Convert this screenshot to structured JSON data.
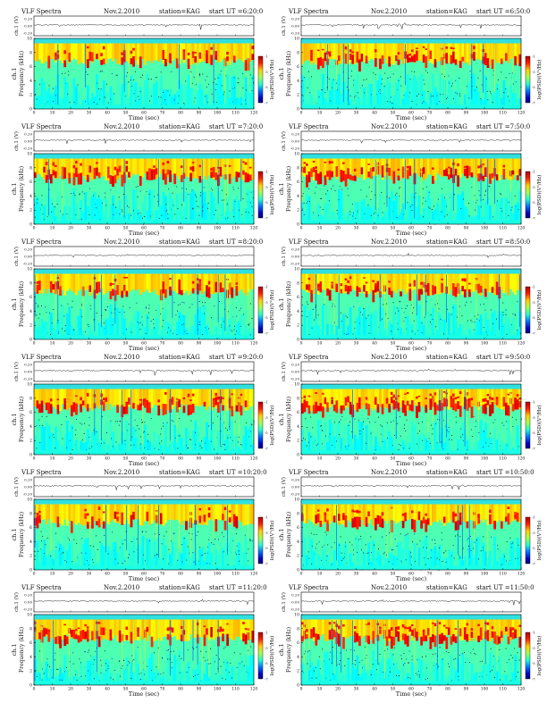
{
  "page": {
    "background": "#ffffff"
  },
  "chart_data": [
    {
      "type": "heatmap",
      "title": "VLF Spectra",
      "date": "Nov.2.2010",
      "station": "station=KAG",
      "start_ut": "start UT =6:20:0",
      "time_series": {
        "ylabel": "ch.1 (V)",
        "yticks": [
          "0.20",
          "0.00",
          "-0.20"
        ]
      },
      "spectrogram": {
        "ylabel_channel": "ch.1",
        "ylabel": "Frequency (kHz)",
        "xlabel": "Time (sec)",
        "xlim": [
          0,
          120
        ],
        "ylim": [
          0,
          10
        ],
        "xticks": [
          0,
          10,
          20,
          30,
          40,
          50,
          60,
          70,
          80,
          90,
          100,
          110,
          120
        ],
        "yticks": [
          0,
          2,
          4,
          6,
          8,
          10
        ]
      },
      "colorbar": {
        "label": "log(PSD)(V²/Hz)",
        "ticks": [
          "-1",
          "-3",
          "-5",
          "-7"
        ]
      }
    },
    {
      "type": "heatmap",
      "title": "VLF Spectra",
      "date": "Nov.2.2010",
      "station": "station=KAG",
      "start_ut": "start UT =6:50:0",
      "time_series": {
        "ylabel": "ch.1 (V)",
        "yticks": [
          "0.20",
          "0.00",
          "-0.20"
        ]
      },
      "spectrogram": {
        "ylabel_channel": "ch.1",
        "ylabel": "Frequency (kHz)",
        "xlabel": "Time (sec)",
        "xlim": [
          0,
          120
        ],
        "ylim": [
          0,
          10
        ],
        "xticks": [
          0,
          10,
          20,
          30,
          40,
          50,
          60,
          70,
          80,
          90,
          100,
          110,
          120
        ],
        "yticks": [
          0,
          2,
          4,
          6,
          8,
          10
        ]
      },
      "colorbar": {
        "label": "log(PSD)(V²/Hz)",
        "ticks": [
          "-1",
          "-3",
          "-5",
          "-7"
        ]
      }
    },
    {
      "type": "heatmap",
      "title": "VLF Spectra",
      "date": "Nov.2.2010",
      "station": "station=KAG",
      "start_ut": "start UT =7:20:0",
      "time_series": {
        "ylabel": "ch.1 (V)",
        "yticks": [
          "0.20",
          "0.00",
          "-0.20"
        ]
      },
      "spectrogram": {
        "ylabel_channel": "ch.1",
        "ylabel": "Frequency (kHz)",
        "xlabel": "Time (sec)",
        "xlim": [
          0,
          120
        ],
        "ylim": [
          0,
          10
        ],
        "xticks": [
          0,
          10,
          20,
          30,
          40,
          50,
          60,
          70,
          80,
          90,
          100,
          110,
          120
        ],
        "yticks": [
          0,
          2,
          4,
          6,
          8,
          10
        ]
      },
      "colorbar": {
        "label": "log(PSD)(V²/Hz)",
        "ticks": [
          "-1",
          "-3",
          "-5",
          "-7"
        ]
      }
    },
    {
      "type": "heatmap",
      "title": "VLF Spectra",
      "date": "Nov.2.2010",
      "station": "station=KAG",
      "start_ut": "start UT =7:50:0",
      "time_series": {
        "ylabel": "ch.1 (V)",
        "yticks": [
          "0.20",
          "0.00",
          "-0.20"
        ]
      },
      "spectrogram": {
        "ylabel_channel": "ch.1",
        "ylabel": "Frequency (kHz)",
        "xlabel": "Time (sec)",
        "xlim": [
          0,
          120
        ],
        "ylim": [
          0,
          10
        ],
        "xticks": [
          0,
          10,
          20,
          30,
          40,
          50,
          60,
          70,
          80,
          90,
          100,
          110,
          120
        ],
        "yticks": [
          0,
          2,
          4,
          6,
          8,
          10
        ]
      },
      "colorbar": {
        "label": "log(PSD)(V²/Hz)",
        "ticks": [
          "-1",
          "-3",
          "-5",
          "-7"
        ]
      }
    },
    {
      "type": "heatmap",
      "title": "VLF Spectra",
      "date": "Nov.2.2010",
      "station": "station=KAG",
      "start_ut": "start UT =8:20:0",
      "time_series": {
        "ylabel": "ch.1 (V)",
        "yticks": [
          "0.20",
          "0.00",
          "-0.20"
        ]
      },
      "spectrogram": {
        "ylabel_channel": "ch.1",
        "ylabel": "Frequency (kHz)",
        "xlabel": "Time (sec)",
        "xlim": [
          0,
          120
        ],
        "ylim": [
          0,
          10
        ],
        "xticks": [
          0,
          10,
          20,
          30,
          40,
          50,
          60,
          70,
          80,
          90,
          100,
          110,
          120
        ],
        "yticks": [
          0,
          2,
          4,
          6,
          8,
          10
        ]
      },
      "colorbar": {
        "label": "log(PSD)(V²/Hz)",
        "ticks": [
          "-1",
          "-3",
          "-5",
          "-7"
        ]
      }
    },
    {
      "type": "heatmap",
      "title": "VLF Spectra",
      "date": "Nov.2.2010",
      "station": "station=KAG",
      "start_ut": "start UT =8:50:0",
      "time_series": {
        "ylabel": "ch.1 (V)",
        "yticks": [
          "0.20",
          "0.00",
          "-0.20"
        ]
      },
      "spectrogram": {
        "ylabel_channel": "ch.1",
        "ylabel": "Frequency (kHz)",
        "xlabel": "Time (sec)",
        "xlim": [
          0,
          120
        ],
        "ylim": [
          0,
          10
        ],
        "xticks": [
          0,
          10,
          20,
          30,
          40,
          50,
          60,
          70,
          80,
          90,
          100,
          110,
          120
        ],
        "yticks": [
          0,
          2,
          4,
          6,
          8,
          10
        ]
      },
      "colorbar": {
        "label": "log(PSD)(V²/Hz)",
        "ticks": [
          "-1",
          "-3",
          "-5",
          "-7"
        ]
      }
    },
    {
      "type": "heatmap",
      "title": "VLF Spectra",
      "date": "Nov.2.2010",
      "station": "station=KAG",
      "start_ut": "start UT =9:20:0",
      "time_series": {
        "ylabel": "ch.1 (V)",
        "yticks": [
          "0.20",
          "0.00",
          "-0.20"
        ]
      },
      "spectrogram": {
        "ylabel_channel": "ch.1",
        "ylabel": "Frequency (kHz)",
        "xlabel": "Time (sec)",
        "xlim": [
          0,
          120
        ],
        "ylim": [
          0,
          10
        ],
        "xticks": [
          0,
          10,
          20,
          30,
          40,
          50,
          60,
          70,
          80,
          90,
          100,
          110,
          120
        ],
        "yticks": [
          0,
          2,
          4,
          6,
          8,
          10
        ]
      },
      "colorbar": {
        "label": "log(PSD)(V²/Hz)",
        "ticks": [
          "-1",
          "-3",
          "-5",
          "-7"
        ]
      }
    },
    {
      "type": "heatmap",
      "title": "VLF Spectra",
      "date": "Nov.2.2010",
      "station": "station=KAG",
      "start_ut": "start UT =9:50:0",
      "time_series": {
        "ylabel": "ch.1 (V)",
        "yticks": [
          "0.20",
          "0.00",
          "-0.20"
        ]
      },
      "spectrogram": {
        "ylabel_channel": "ch.1",
        "ylabel": "Frequency (kHz)",
        "xlabel": "Time (sec)",
        "xlim": [
          0,
          120
        ],
        "ylim": [
          0,
          10
        ],
        "xticks": [
          0,
          10,
          20,
          30,
          40,
          50,
          60,
          70,
          80,
          90,
          100,
          110,
          120
        ],
        "yticks": [
          0,
          2,
          4,
          6,
          8,
          10
        ]
      },
      "colorbar": {
        "label": "log(PSD)(V²/Hz)",
        "ticks": [
          "-1",
          "-3",
          "-5",
          "-7"
        ]
      }
    },
    {
      "type": "heatmap",
      "title": "VLF Spectra",
      "date": "Nov.2.2010",
      "station": "station=KAG",
      "start_ut": "start UT =10:20:0",
      "time_series": {
        "ylabel": "ch.1 (V)",
        "yticks": [
          "0.20",
          "0.00",
          "-0.20"
        ]
      },
      "spectrogram": {
        "ylabel_channel": "ch.1",
        "ylabel": "Frequency (kHz)",
        "xlabel": "Time (sec)",
        "xlim": [
          0,
          120
        ],
        "ylim": [
          0,
          10
        ],
        "xticks": [
          0,
          10,
          20,
          30,
          40,
          50,
          60,
          70,
          80,
          90,
          100,
          110,
          120
        ],
        "yticks": [
          0,
          2,
          4,
          6,
          8,
          10
        ]
      },
      "colorbar": {
        "label": "log(PSD)(V²/Hz)",
        "ticks": [
          "-1",
          "-3",
          "-5",
          "-7"
        ]
      }
    },
    {
      "type": "heatmap",
      "title": "VLF Spectra",
      "date": "Nov.2.2010",
      "station": "station=KAG",
      "start_ut": "start UT =10:50:0",
      "time_series": {
        "ylabel": "ch.1 (V)",
        "yticks": [
          "0.20",
          "0.00",
          "-0.20"
        ]
      },
      "spectrogram": {
        "ylabel_channel": "ch.1",
        "ylabel": "Frequency (kHz)",
        "xlabel": "Time (sec)",
        "xlim": [
          0,
          120
        ],
        "ylim": [
          0,
          10
        ],
        "xticks": [
          0,
          10,
          20,
          30,
          40,
          50,
          60,
          70,
          80,
          90,
          100,
          110,
          120
        ],
        "yticks": [
          0,
          2,
          4,
          6,
          8,
          10
        ]
      },
      "colorbar": {
        "label": "log(PSD)(V²/Hz)",
        "ticks": [
          "-1",
          "-3",
          "-5",
          "-7"
        ]
      }
    },
    {
      "type": "heatmap",
      "title": "VLF Spectra",
      "date": "Nov.2.2010",
      "station": "station=KAG",
      "start_ut": "start UT =11:20:0",
      "time_series": {
        "ylabel": "ch.1 (V)",
        "yticks": [
          "0.20",
          "0.00",
          "-0.20"
        ]
      },
      "spectrogram": {
        "ylabel_channel": "ch.1",
        "ylabel": "Frequency (kHz)",
        "xlabel": "Time (sec)",
        "xlim": [
          0,
          120
        ],
        "ylim": [
          0,
          10
        ],
        "xticks": [
          0,
          10,
          20,
          30,
          40,
          50,
          60,
          70,
          80,
          90,
          100,
          110,
          120
        ],
        "yticks": [
          0,
          2,
          4,
          6,
          8,
          10
        ]
      },
      "colorbar": {
        "label": "log(PSD)(V²/Hz)",
        "ticks": [
          "-1",
          "-3",
          "-5",
          "-7"
        ]
      }
    },
    {
      "type": "heatmap",
      "title": "VLF Spectra",
      "date": "Nov.2.2010",
      "station": "station=KAG",
      "start_ut": "start UT =11:50:0",
      "time_series": {
        "ylabel": "ch.1 (V)",
        "yticks": [
          "0.20",
          "0.00",
          "-0.20"
        ]
      },
      "spectrogram": {
        "ylabel_channel": "ch.1",
        "ylabel": "Frequency (kHz)",
        "xlabel": "Time (sec)",
        "xlim": [
          0,
          120
        ],
        "ylim": [
          0,
          10
        ],
        "xticks": [
          0,
          10,
          20,
          30,
          40,
          50,
          60,
          70,
          80,
          90,
          100,
          110,
          120
        ],
        "yticks": [
          0,
          2,
          4,
          6,
          8,
          10
        ]
      },
      "colorbar": {
        "label": "log(PSD)(V²/Hz)",
        "ticks": [
          "-1",
          "-3",
          "-5",
          "-7"
        ]
      }
    }
  ]
}
